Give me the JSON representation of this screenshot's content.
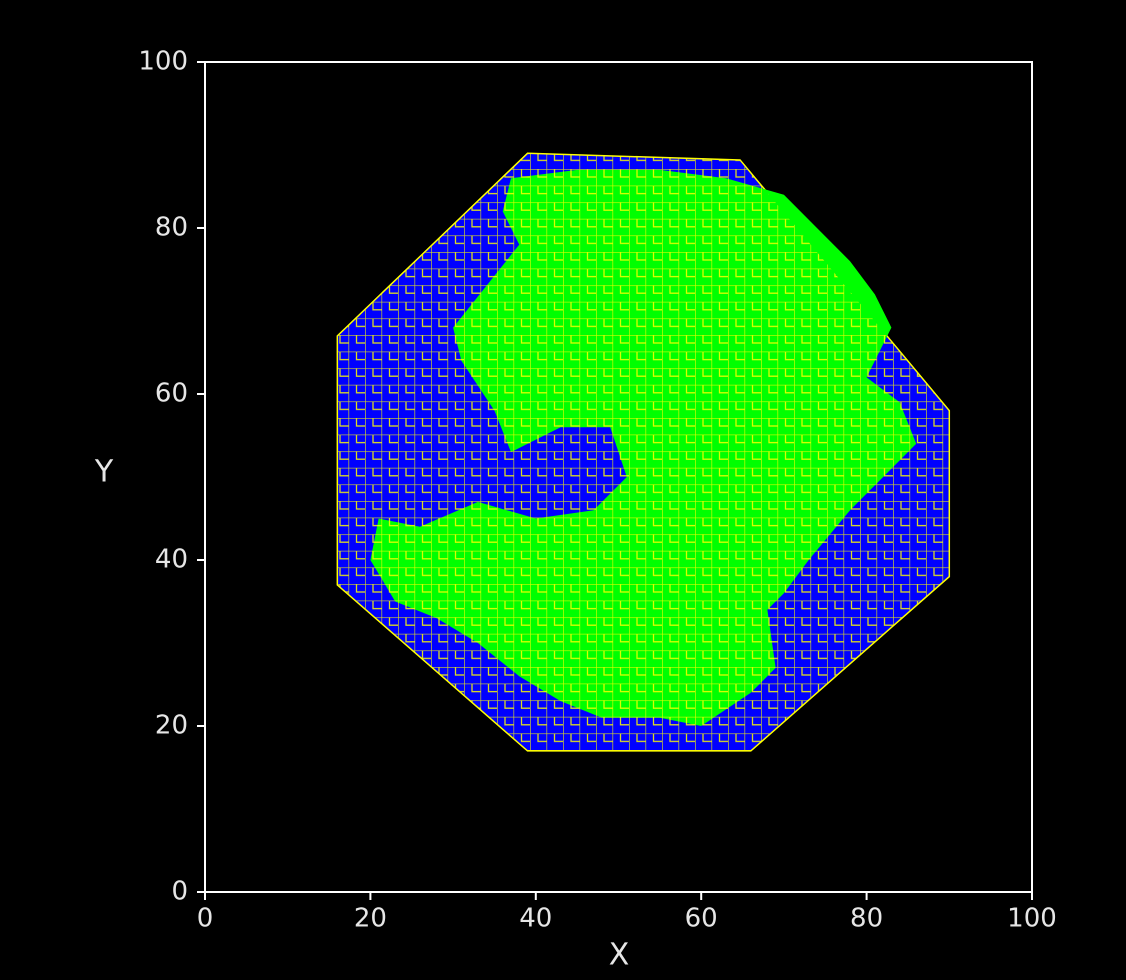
{
  "chart_data": {
    "type": "region",
    "x_label": "X",
    "y_label": "Y",
    "xlim": [
      0,
      100
    ],
    "ylim": [
      0,
      100
    ],
    "xticks": [
      0,
      20,
      40,
      60,
      80,
      100
    ],
    "yticks": [
      0,
      20,
      40,
      60,
      80,
      100
    ],
    "mesh_color": "#ffff00",
    "shapes": [
      {
        "color": "#0000ff",
        "x": [
          39,
          64.7,
          90,
          90,
          66,
          39,
          16,
          16
        ],
        "y": [
          89,
          88.2,
          58,
          38,
          17,
          17,
          37,
          67
        ]
      },
      {
        "color": "#00ff00",
        "x": [
          37,
          45,
          55,
          63,
          70,
          74,
          78,
          81,
          83,
          80,
          84,
          86,
          82,
          78,
          73,
          70,
          68,
          69,
          66,
          60,
          55,
          48,
          43,
          38,
          33,
          28,
          23,
          20,
          21,
          26,
          33,
          40,
          47,
          51,
          49,
          43,
          37,
          35,
          31,
          30,
          34,
          38,
          36
        ],
        "y": [
          86,
          87,
          87,
          86,
          84,
          80,
          76,
          72,
          68,
          62,
          59,
          54,
          50,
          46,
          40,
          36,
          34,
          27,
          24,
          20,
          21,
          21,
          23,
          26,
          30,
          33,
          35,
          40,
          45,
          44,
          47,
          45,
          46,
          50,
          56,
          56,
          53,
          58,
          64,
          68,
          73,
          78,
          82
        ]
      }
    ]
  }
}
